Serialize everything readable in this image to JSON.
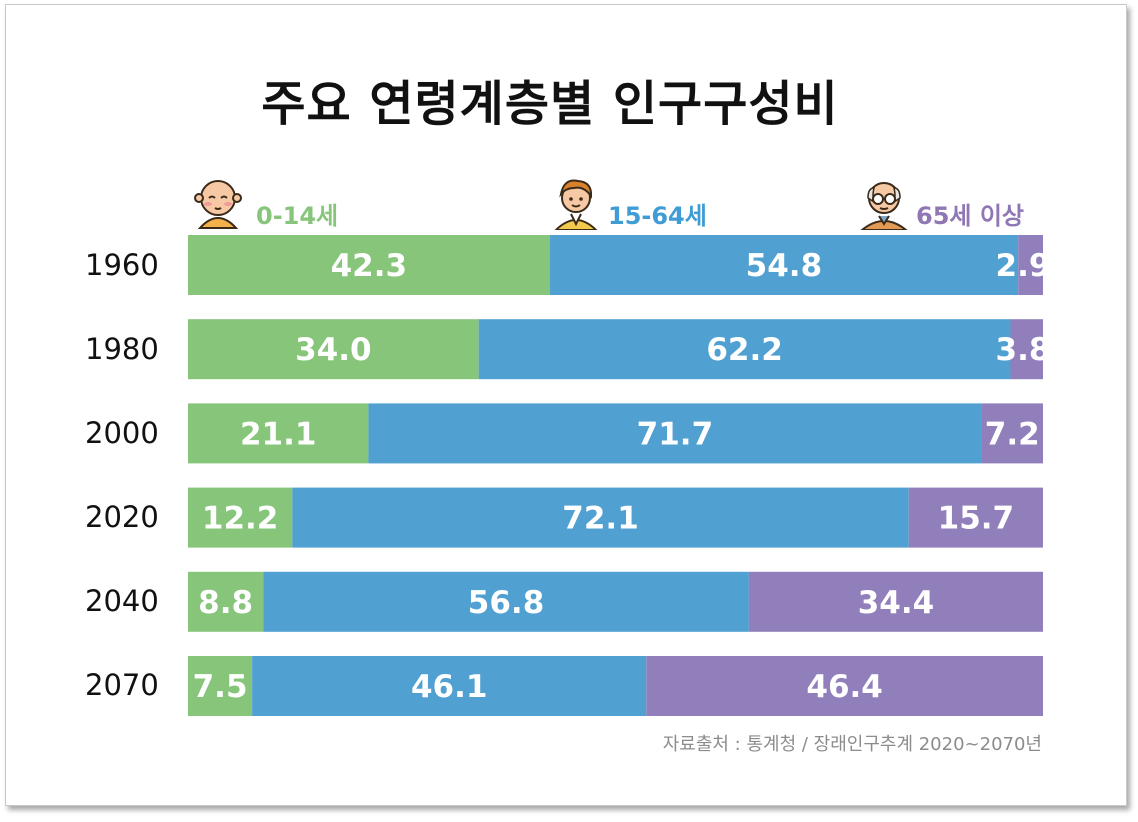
{
  "title": "주요 연령계층별 인구구성비",
  "legend": [
    {
      "label": "0-14세",
      "color": "#86c57a",
      "icon": "baby-icon"
    },
    {
      "label": "15-64세",
      "color": "#3f9cd4",
      "icon": "adult-icon"
    },
    {
      "label": "65세 이상",
      "color": "#9a7fb9",
      "icon": "elderly-icon"
    }
  ],
  "source": "자료출처 : 통계청 / 장래인구추계 2020~2070년",
  "chart_data": {
    "type": "bar",
    "orientation": "horizontal",
    "stacked": true,
    "title": "주요 연령계층별 인구구성비",
    "categories": [
      "1960",
      "1980",
      "2000",
      "2020",
      "2040",
      "2070"
    ],
    "series": [
      {
        "name": "0-14세",
        "color": "#86c57a",
        "values": [
          42.3,
          34.0,
          21.1,
          12.2,
          8.8,
          7.5
        ],
        "labels": [
          "42.3",
          "34.0",
          "21.1",
          "12.2",
          "8.8",
          "7.5"
        ]
      },
      {
        "name": "15-64세",
        "color": "#50a0d1",
        "values": [
          54.8,
          62.2,
          71.7,
          72.1,
          56.8,
          46.1
        ],
        "labels": [
          "54.8",
          "62.2",
          "71.7",
          "72.1",
          "56.8",
          "46.1"
        ]
      },
      {
        "name": "65세 이상",
        "color": "#917fbb",
        "values": [
          2.9,
          3.8,
          7.2,
          15.7,
          34.4,
          46.4
        ],
        "labels": [
          "2.9",
          "3.8",
          "7.2",
          "15.7",
          "34.4",
          "46.4"
        ]
      }
    ],
    "xlim": [
      0,
      100
    ],
    "unit": "%"
  }
}
